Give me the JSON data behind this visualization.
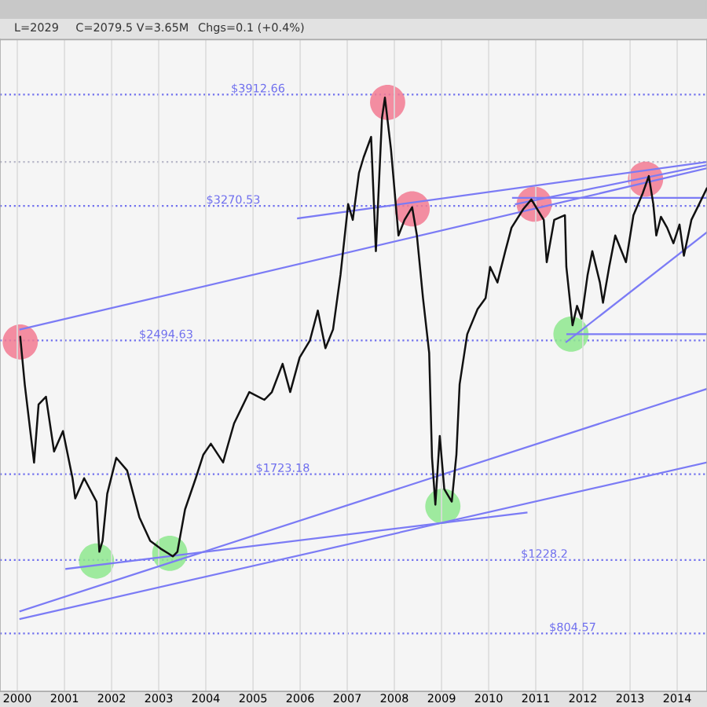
{
  "chart_data": {
    "type": "line",
    "annotations": [
      "L=2029",
      "C=2079.5",
      "V=3.65M",
      "Chgs=0.1 (+0.4%)"
    ],
    "xlim": [
      "1999-08-20",
      "2014-08-20"
    ],
    "ylim": [
      470,
      4230
    ],
    "tick_labels": "x",
    "grid": "x",
    "xticks": [
      "2000",
      "2001",
      "2002",
      "2003",
      "2004",
      "2005",
      "2006",
      "2007",
      "2008",
      "2009",
      "2010",
      "2011",
      "2012",
      "2013",
      "2014"
    ],
    "series": [
      {
        "color": "#111111",
        "x": [
          "2000-01-24",
          "2000-02-28",
          "2000-05-10",
          "2000-06-14",
          "2000-08-10",
          "2000-10-12",
          "2000-12-20",
          "2001-03-04",
          "2001-03-25",
          "2001-06-02",
          "2001-09-06",
          "2001-09-28",
          "2001-10-23",
          "2001-11-28",
          "2002-02-06",
          "2002-05-01",
          "2002-08-04",
          "2002-10-27",
          "2003-01-15",
          "2003-03-14",
          "2003-04-20",
          "2003-05-26",
          "2003-07-24",
          "2003-10-15",
          "2003-12-13",
          "2004-02-09",
          "2004-05-14",
          "2004-06-06",
          "2004-08-07",
          "2004-12-03",
          "2005-03-30",
          "2005-05-27",
          "2005-08-18",
          "2005-10-16",
          "2005-12-28",
          "2006-03-18",
          "2006-05-18",
          "2006-07-16",
          "2006-09-13",
          "2006-11-10",
          "2007-01-08",
          "2007-02-13",
          "2007-04-02",
          "2007-05-08",
          "2007-07-05",
          "2007-08-11",
          "2007-09-27",
          "2007-10-20",
          "2007-12-06",
          "2008-02-02",
          "2008-03-20",
          "2008-05-18",
          "2008-06-24",
          "2008-08-10",
          "2008-09-27",
          "2008-10-19",
          "2008-11-14",
          "2008-12-18",
          "2009-01-22",
          "2009-03-21",
          "2009-04-26",
          "2009-05-21",
          "2009-07-19",
          "2009-10-07",
          "2009-12-08",
          "2010-01-12",
          "2010-03-10",
          "2010-05-10",
          "2010-06-27",
          "2010-09-27",
          "2010-11-28",
          "2011-01-26",
          "2011-03-04",
          "2011-03-27",
          "2011-05-24",
          "2011-08-15",
          "2011-08-26",
          "2011-10-13",
          "2011-11-17",
          "2011-12-22",
          "2012-02-07",
          "2012-03-14",
          "2012-05-12",
          "2012-06-05",
          "2012-07-23",
          "2012-09-08",
          "2012-11-30",
          "2013-01-27",
          "2013-04-09",
          "2013-05-26",
          "2013-06-30",
          "2013-07-23",
          "2013-08-28",
          "2013-10-15",
          "2013-12-03",
          "2014-01-19",
          "2014-02-22",
          "2014-04-21",
          "2014-06-20",
          "2014-08-18"
        ],
        "values": [
          2515,
          2240,
          1790,
          2125,
          2170,
          1854,
          1972,
          1700,
          1583,
          1700,
          1565,
          1276,
          1339,
          1610,
          1818,
          1745,
          1475,
          1339,
          1294,
          1267,
          1249,
          1276,
          1520,
          1700,
          1836,
          1899,
          1791,
          1854,
          2016,
          2197,
          2152,
          2197,
          2360,
          2197,
          2396,
          2495,
          2667,
          2450,
          2558,
          2874,
          3281,
          3190,
          3461,
          3551,
          3669,
          3010,
          3777,
          3895,
          3597,
          3100,
          3190,
          3263,
          3100,
          2739,
          2423,
          1818,
          1547,
          1944,
          1637,
          1565,
          1836,
          2242,
          2531,
          2675,
          2739,
          2919,
          2829,
          3010,
          3145,
          3253,
          3308,
          3235,
          3190,
          2946,
          3190,
          3217,
          2919,
          2582,
          2694,
          2621,
          2874,
          3010,
          2829,
          2712,
          2919,
          3100,
          2946,
          3217,
          3344,
          3443,
          3281,
          3100,
          3208,
          3145,
          3055,
          3163,
          2983,
          3190,
          3281,
          3371
        ]
      },
      {
        "type": "line",
        "color": "#7b7bf5",
        "x": [
          "2000-01-24",
          "2014-08-18"
        ],
        "values": [
          2558,
          3488
        ]
      },
      {
        "type": "line",
        "color": "#7b7bf5",
        "x": [
          "2005-12-15",
          "2014-08-18"
        ],
        "values": [
          3199,
          3524
        ]
      },
      {
        "type": "line",
        "color": "#7b7bf5",
        "x": [
          "2010-07-30",
          "2014-08-18"
        ],
        "values": [
          3281,
          3506
        ]
      },
      {
        "type": "line",
        "color": "#7b7bf5",
        "x": [
          "2010-07-08",
          "2014-08-18"
        ],
        "values": [
          3317,
          3317
        ]
      },
      {
        "type": "line",
        "color": "#7b7bf5",
        "x": [
          "2011-08-26",
          "2014-08-18"
        ],
        "values": [
          2486,
          3118
        ]
      },
      {
        "type": "line",
        "color": "#7b7bf5",
        "x": [
          "2011-09-02",
          "2014-08-18"
        ],
        "values": [
          2531,
          2531
        ]
      },
      {
        "type": "line",
        "color": "#7b7bf5",
        "x": [
          "2001-01-14",
          "2010-10-22"
        ],
        "values": [
          1177,
          1502
        ]
      },
      {
        "type": "line",
        "color": "#7b7bf5",
        "x": [
          "2000-01-24",
          "2014-08-18"
        ],
        "values": [
          933,
          2215
        ]
      },
      {
        "type": "line",
        "color": "#7b7bf5",
        "x": [
          "2000-01-24",
          "2014-08-18"
        ],
        "values": [
          888,
          1791
        ]
      },
      {
        "type": "scatter",
        "color": "#f27a92",
        "marker": "circle",
        "x": [
          "2000-01-24",
          "2007-11-10",
          "2008-05-18",
          "2010-12-20",
          "2013-05-01"
        ],
        "values": [
          2486,
          3868,
          3254,
          3281,
          3425
        ]
      },
      {
        "type": "scatter",
        "color": "#8ee88e",
        "marker": "circle",
        "x": [
          "2001-09-06",
          "2003-03-28",
          "2009-01-11",
          "2011-10-01"
        ],
        "values": [
          1222,
          1267,
          1538,
          2531
        ]
      }
    ],
    "ref_lines": [
      {
        "axis": "y",
        "value": 3912.66,
        "label": "$3912.66",
        "color": "#7070ee",
        "line_style": "dotted"
      },
      {
        "axis": "y",
        "value": 3524,
        "label": null,
        "color": "#b8b8c8",
        "line_style": "dotted"
      },
      {
        "axis": "y",
        "value": 3270.53,
        "label": "$3270.53",
        "color": "#7070ee",
        "line_style": "dotted"
      },
      {
        "axis": "y",
        "value": 2494.63,
        "label": "$2494.63",
        "color": "#7070ee",
        "line_style": "dotted"
      },
      {
        "axis": "y",
        "value": 1723.18,
        "label": "$1723.18",
        "color": "#7070ee",
        "line_style": "dotted"
      },
      {
        "axis": "y",
        "value": 1228.2,
        "label": "$1228.2",
        "color": "#7070ee",
        "line_style": "dotted"
      },
      {
        "axis": "y",
        "value": 804.57,
        "label": "$804.57",
        "color": "#7070ee",
        "line_style": "dotted"
      }
    ]
  }
}
